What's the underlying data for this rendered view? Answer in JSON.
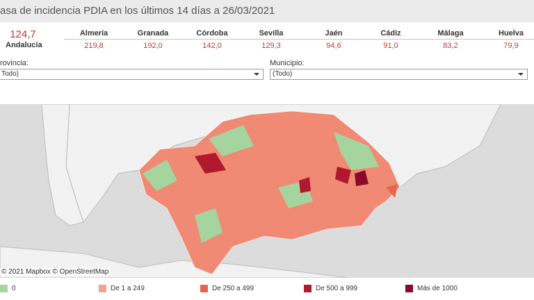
{
  "header": {
    "title": "asa de incidencia PDIA en los últimos 14 días a 26/03/2021"
  },
  "summary": {
    "value": "124,7",
    "label": "Andalucía"
  },
  "provinces": [
    {
      "name": "Almería",
      "value": "219,8"
    },
    {
      "name": "Granada",
      "value": "192,0"
    },
    {
      "name": "Córdoba",
      "value": "142,0"
    },
    {
      "name": "Sevilla",
      "value": "129,3"
    },
    {
      "name": "Jaén",
      "value": "94,6"
    },
    {
      "name": "Cádiz",
      "value": "91,0"
    },
    {
      "name": "Málaga",
      "value": "83,2"
    },
    {
      "name": "Huelva",
      "value": "79,9"
    }
  ],
  "filters": [
    {
      "label": "rovincia:",
      "value": "Todo)"
    },
    {
      "label": "Municipio:",
      "value": "(Todo)"
    }
  ],
  "map": {
    "attribution": "© 2021 Mapbox © OpenStreetMap"
  },
  "legend": [
    {
      "label": "0",
      "color": "#a6d49f"
    },
    {
      "label": "De 1 a 249",
      "color": "#f4a28c"
    },
    {
      "label": "De 250 a 499",
      "color": "#e8644e"
    },
    {
      "label": "De 500 a 999",
      "color": "#b0192e"
    },
    {
      "label": "Más de 1000",
      "color": "#8b0a2a"
    }
  ]
}
